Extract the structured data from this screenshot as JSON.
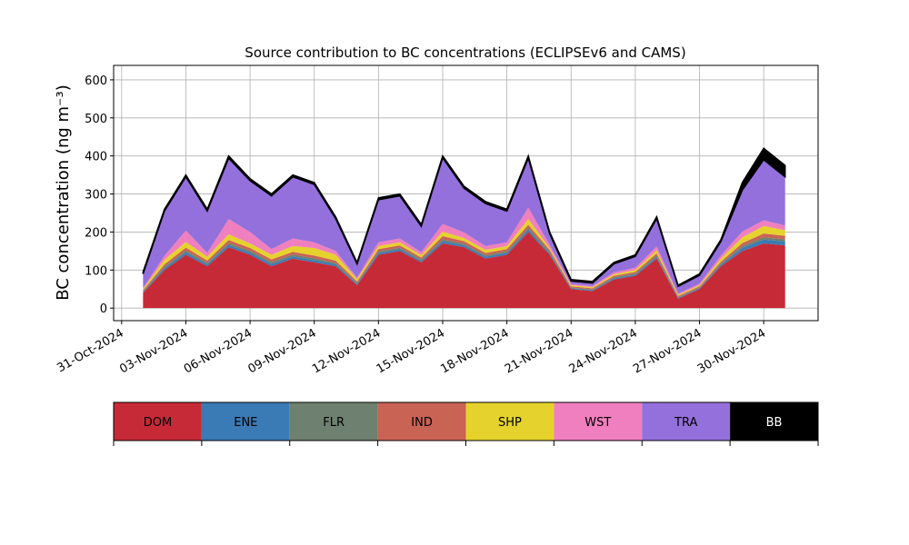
{
  "chart_data": {
    "type": "stacked_area",
    "title": "Source contribution to BC concentrations (ECLIPSEv6 and CAMS)",
    "y_label": "BC concentration (ng m⁻³)",
    "x": [
      "2024-11-01",
      "2024-11-02",
      "2024-11-03",
      "2024-11-04",
      "2024-11-05",
      "2024-11-06",
      "2024-11-07",
      "2024-11-08",
      "2024-11-09",
      "2024-11-10",
      "2024-11-11",
      "2024-11-12",
      "2024-11-13",
      "2024-11-14",
      "2024-11-15",
      "2024-11-16",
      "2024-11-17",
      "2024-11-18",
      "2024-11-19",
      "2024-11-20",
      "2024-11-21",
      "2024-11-22",
      "2024-11-23",
      "2024-11-24",
      "2024-11-25",
      "2024-11-26",
      "2024-11-27",
      "2024-11-28",
      "2024-11-29",
      "2024-11-30",
      "2024-12-01"
    ],
    "series": [
      {
        "name": "DOM",
        "color": "#c62a36",
        "values": [
          40,
          100,
          140,
          110,
          160,
          140,
          110,
          130,
          120,
          110,
          60,
          140,
          150,
          120,
          170,
          160,
          130,
          140,
          200,
          140,
          50,
          45,
          75,
          85,
          130,
          25,
          50,
          110,
          150,
          170,
          165
        ]
      },
      {
        "name": "ENE",
        "color": "#3a7ab5",
        "values": [
          2,
          5,
          6,
          5,
          6,
          6,
          6,
          6,
          6,
          5,
          3,
          5,
          5,
          4,
          6,
          5,
          5,
          5,
          6,
          4,
          2,
          2,
          3,
          3,
          4,
          2,
          2,
          4,
          8,
          10,
          10
        ]
      },
      {
        "name": "FLR",
        "color": "#6e8070",
        "values": [
          2,
          4,
          5,
          4,
          5,
          5,
          5,
          5,
          5,
          4,
          3,
          4,
          4,
          4,
          5,
          4,
          4,
          4,
          5,
          4,
          2,
          2,
          3,
          3,
          4,
          2,
          2,
          3,
          5,
          6,
          6
        ]
      },
      {
        "name": "IND",
        "color": "#c96354",
        "values": [
          3,
          6,
          8,
          6,
          8,
          7,
          7,
          7,
          7,
          6,
          4,
          6,
          6,
          5,
          8,
          7,
          6,
          6,
          8,
          5,
          3,
          3,
          4,
          4,
          6,
          3,
          3,
          5,
          8,
          10,
          9
        ]
      },
      {
        "name": "SHP",
        "color": "#e5d22c",
        "values": [
          3,
          12,
          15,
          10,
          15,
          12,
          12,
          15,
          20,
          15,
          6,
          8,
          8,
          6,
          12,
          8,
          8,
          8,
          15,
          5,
          3,
          3,
          4,
          5,
          8,
          3,
          3,
          8,
          15,
          20,
          15
        ]
      },
      {
        "name": "WST",
        "color": "#f07fbf",
        "values": [
          3,
          10,
          30,
          10,
          40,
          30,
          15,
          20,
          15,
          10,
          4,
          10,
          10,
          8,
          20,
          15,
          10,
          10,
          30,
          8,
          3,
          3,
          5,
          6,
          10,
          3,
          4,
          8,
          15,
          15,
          12
        ]
      },
      {
        "name": "TRA",
        "color": "#9370db",
        "values": [
          37,
          118,
          141,
          110,
          160,
          135,
          140,
          162,
          152,
          85,
          36,
          112,
          112,
          68,
          174,
          116,
          112,
          82,
          130,
          29,
          8,
          8,
          22,
          30,
          73,
          19,
          22,
          37,
          109,
          159,
          128
        ]
      },
      {
        "name": "BB",
        "color": "#000000",
        "values": [
          5,
          5,
          5,
          5,
          6,
          5,
          5,
          5,
          5,
          5,
          4,
          5,
          5,
          5,
          5,
          5,
          5,
          5,
          6,
          5,
          4,
          4,
          4,
          4,
          5,
          3,
          4,
          5,
          20,
          30,
          30
        ]
      }
    ],
    "xlim": [
      "2024-10-30T15:00",
      "2024-12-02T13:00"
    ],
    "xticks": [
      {
        "value": "2024-10-31",
        "label": "31-Oct-2024"
      },
      {
        "value": "2024-11-03",
        "label": "03-Nov-2024"
      },
      {
        "value": "2024-11-06",
        "label": "06-Nov-2024"
      },
      {
        "value": "2024-11-09",
        "label": "09-Nov-2024"
      },
      {
        "value": "2024-11-12",
        "label": "12-Nov-2024"
      },
      {
        "value": "2024-11-15",
        "label": "15-Nov-2024"
      },
      {
        "value": "2024-11-18",
        "label": "18-Nov-2024"
      },
      {
        "value": "2024-11-21",
        "label": "21-Nov-2024"
      },
      {
        "value": "2024-11-24",
        "label": "24-Nov-2024"
      },
      {
        "value": "2024-11-27",
        "label": "27-Nov-2024"
      },
      {
        "value": "2024-11-30",
        "label": "30-Nov-2024"
      }
    ],
    "ylim": [
      -33,
      638
    ],
    "yticks": [
      0,
      100,
      200,
      300,
      400,
      500,
      600
    ],
    "grid": true
  }
}
